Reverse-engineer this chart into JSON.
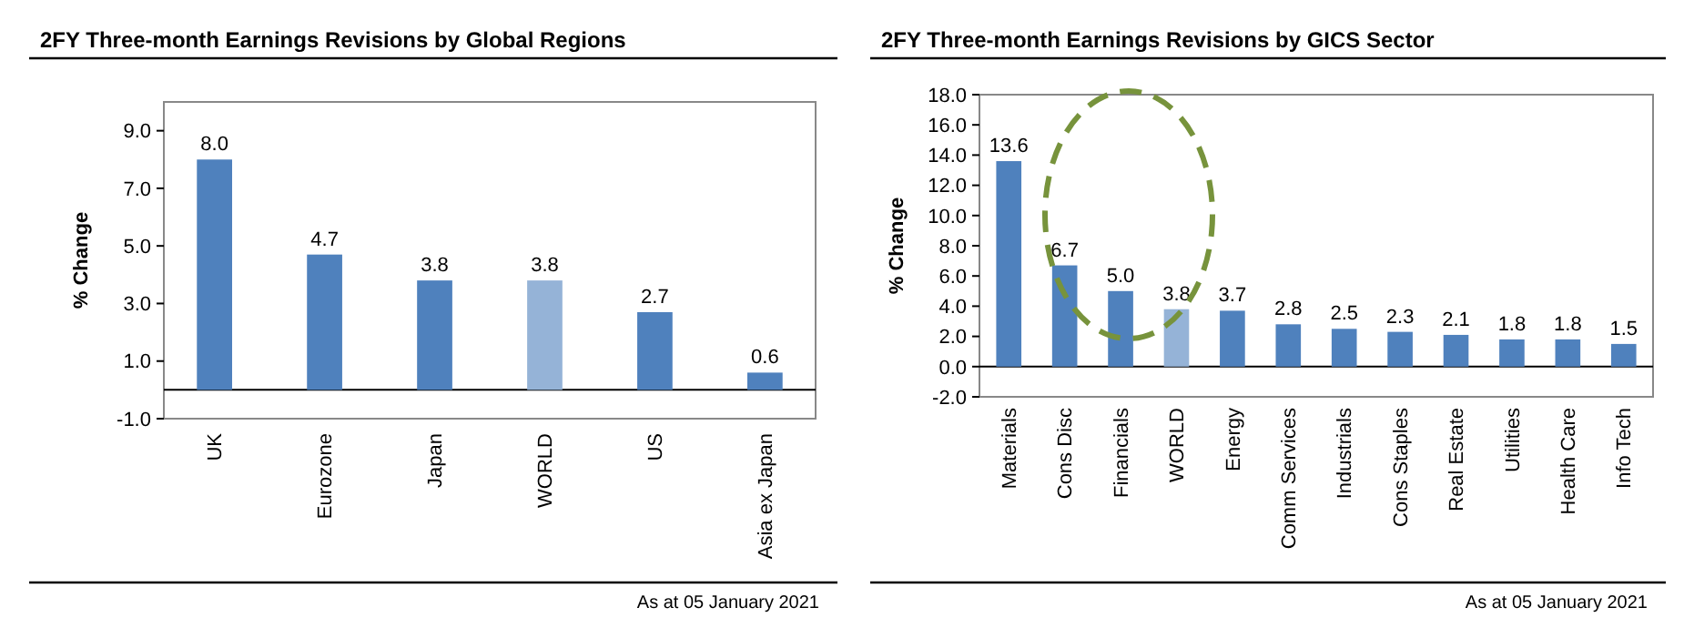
{
  "chart_data": [
    {
      "type": "bar",
      "title": "2FY Three-month Earnings Revisions by Global Regions",
      "ylabel": "% Change",
      "categories": [
        "UK",
        "Eurozone",
        "Japan",
        "WORLD",
        "US",
        "Asia ex Japan"
      ],
      "values": [
        8.0,
        4.7,
        3.8,
        3.8,
        2.7,
        0.6
      ],
      "colors": [
        "#4f81bd",
        "#4f81bd",
        "#4f81bd",
        "#95b3d7",
        "#4f81bd",
        "#4f81bd"
      ],
      "ylim": [
        -1,
        10
      ],
      "yticks": [
        {
          "value": -1,
          "label": "-1.0"
        },
        {
          "value": 1,
          "label": "1.0"
        },
        {
          "value": 3,
          "label": "3.0"
        },
        {
          "value": 5,
          "label": "5.0"
        },
        {
          "value": 7,
          "label": "7.0"
        },
        {
          "value": 9,
          "label": "9.0"
        }
      ],
      "value_labels": [
        "8.0",
        "4.7",
        "3.8",
        "3.8",
        "2.7",
        "0.6"
      ],
      "annotations": [
        "As at 05 January 2021"
      ]
    },
    {
      "type": "bar",
      "title": "2FY Three-month Earnings Revisions by GICS Sector",
      "ylabel": "% Change",
      "categories": [
        "Materials",
        "Cons Disc",
        "Financials",
        "WORLD",
        "Energy",
        "Comm Services",
        "Industrials",
        "Cons Staples",
        "Real Estate",
        "Utilities",
        "Health Care",
        "Info Tech"
      ],
      "values": [
        13.6,
        6.7,
        5.0,
        3.8,
        3.7,
        2.8,
        2.5,
        2.3,
        2.1,
        1.8,
        1.8,
        1.5
      ],
      "colors": [
        "#4f81bd",
        "#4f81bd",
        "#4f81bd",
        "#95b3d7",
        "#4f81bd",
        "#4f81bd",
        "#4f81bd",
        "#4f81bd",
        "#4f81bd",
        "#4f81bd",
        "#4f81bd",
        "#4f81bd"
      ],
      "ylim": [
        -2,
        18
      ],
      "yticks": [
        {
          "value": -2,
          "label": "-2.0"
        },
        {
          "value": 0,
          "label": "0.0"
        },
        {
          "value": 2,
          "label": "2.0"
        },
        {
          "value": 4,
          "label": "4.0"
        },
        {
          "value": 6,
          "label": "6.0"
        },
        {
          "value": 8,
          "label": "8.0"
        },
        {
          "value": 10,
          "label": "10.0"
        },
        {
          "value": 12,
          "label": "12.0"
        },
        {
          "value": 14,
          "label": "14.0"
        },
        {
          "value": 16,
          "label": "16.0"
        },
        {
          "value": 18,
          "label": "18.0"
        }
      ],
      "value_labels": [
        "13.6",
        "6.7",
        "5.0",
        "3.8",
        "3.7",
        "2.8",
        "2.5",
        "2.3",
        "2.1",
        "1.8",
        "1.8",
        "1.5"
      ],
      "annotations": [
        "As at 05 January 2021"
      ]
    }
  ]
}
